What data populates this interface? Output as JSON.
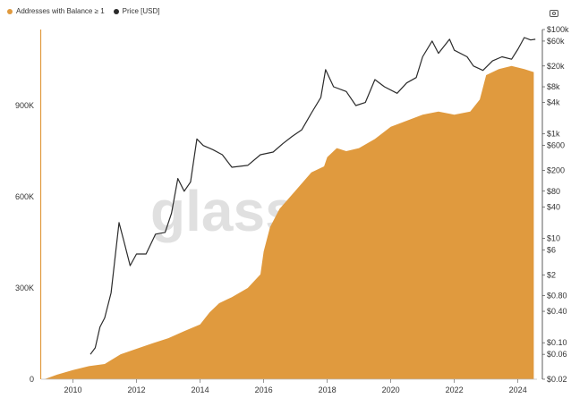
{
  "legend": {
    "addresses_label": "Addresses with Balance ≥ 1",
    "price_label": "Price [USD]",
    "addresses_color": "#e09a3e",
    "price_color": "#2b2b2b"
  },
  "toolbar": {
    "camera_icon": "camera-icon"
  },
  "watermark": "glassnode",
  "chart_data": {
    "type": "area",
    "x_ticks": [
      "2010",
      "2012",
      "2014",
      "2016",
      "2018",
      "2020",
      "2022",
      "2024"
    ],
    "left_axis": {
      "ticks": [
        "0",
        "300K",
        "600K",
        "900K"
      ],
      "tick_values": [
        0,
        300000,
        600000,
        900000
      ],
      "ylim": [
        0,
        1150000
      ]
    },
    "right_axis": {
      "scale": "log",
      "ticks": [
        "$0.02",
        "$0.06",
        "$0.10",
        "$0.40",
        "$0.80",
        "$2",
        "$6",
        "$10",
        "$40",
        "$80",
        "$200",
        "$600",
        "$1k",
        "$4k",
        "$8k",
        "$20k",
        "$60k",
        "$100k"
      ],
      "tick_values": [
        0.02,
        0.06,
        0.1,
        0.4,
        0.8,
        2,
        6,
        10,
        40,
        80,
        200,
        600,
        1000,
        4000,
        8000,
        20000,
        60000,
        100000
      ],
      "ylim": [
        0.02,
        100000
      ]
    },
    "xlim": [
      2009.0,
      2024.6
    ],
    "series": [
      {
        "name": "Addresses with Balance ≥ 1",
        "axis": "left",
        "points": [
          [
            2009.1,
            0
          ],
          [
            2009.5,
            15000
          ],
          [
            2010.0,
            30000
          ],
          [
            2010.5,
            43000
          ],
          [
            2011.0,
            50000
          ],
          [
            2011.5,
            82000
          ],
          [
            2012.0,
            100000
          ],
          [
            2012.5,
            118000
          ],
          [
            2013.0,
            135000
          ],
          [
            2013.5,
            158000
          ],
          [
            2014.0,
            180000
          ],
          [
            2014.3,
            220000
          ],
          [
            2014.6,
            250000
          ],
          [
            2015.0,
            270000
          ],
          [
            2015.5,
            300000
          ],
          [
            2015.9,
            345000
          ],
          [
            2016.0,
            420000
          ],
          [
            2016.2,
            500000
          ],
          [
            2016.5,
            560000
          ],
          [
            2017.0,
            620000
          ],
          [
            2017.5,
            680000
          ],
          [
            2017.9,
            700000
          ],
          [
            2018.0,
            730000
          ],
          [
            2018.3,
            760000
          ],
          [
            2018.6,
            750000
          ],
          [
            2019.0,
            760000
          ],
          [
            2019.5,
            790000
          ],
          [
            2020.0,
            830000
          ],
          [
            2020.5,
            850000
          ],
          [
            2021.0,
            870000
          ],
          [
            2021.5,
            880000
          ],
          [
            2022.0,
            870000
          ],
          [
            2022.5,
            880000
          ],
          [
            2022.8,
            920000
          ],
          [
            2023.0,
            1000000
          ],
          [
            2023.4,
            1020000
          ],
          [
            2023.8,
            1030000
          ],
          [
            2024.2,
            1020000
          ],
          [
            2024.5,
            1010000
          ]
        ]
      },
      {
        "name": "Price [USD]",
        "axis": "right",
        "points": [
          [
            2010.55,
            0.06
          ],
          [
            2010.7,
            0.08
          ],
          [
            2010.85,
            0.2
          ],
          [
            2011.0,
            0.3
          ],
          [
            2011.2,
            0.9
          ],
          [
            2011.45,
            20
          ],
          [
            2011.6,
            9
          ],
          [
            2011.8,
            3
          ],
          [
            2012.0,
            5
          ],
          [
            2012.3,
            5
          ],
          [
            2012.6,
            12
          ],
          [
            2012.9,
            13
          ],
          [
            2013.1,
            30
          ],
          [
            2013.3,
            140
          ],
          [
            2013.5,
            80
          ],
          [
            2013.7,
            120
          ],
          [
            2013.9,
            800
          ],
          [
            2014.1,
            600
          ],
          [
            2014.4,
            500
          ],
          [
            2014.7,
            400
          ],
          [
            2015.0,
            230
          ],
          [
            2015.5,
            250
          ],
          [
            2015.9,
            400
          ],
          [
            2016.3,
            450
          ],
          [
            2016.6,
            650
          ],
          [
            2016.9,
            900
          ],
          [
            2017.2,
            1200
          ],
          [
            2017.5,
            2500
          ],
          [
            2017.8,
            5000
          ],
          [
            2017.95,
            17000
          ],
          [
            2018.2,
            8000
          ],
          [
            2018.6,
            6500
          ],
          [
            2018.9,
            3500
          ],
          [
            2019.2,
            4000
          ],
          [
            2019.5,
            11000
          ],
          [
            2019.8,
            8000
          ],
          [
            2020.2,
            6000
          ],
          [
            2020.5,
            9500
          ],
          [
            2020.8,
            12000
          ],
          [
            2021.0,
            30000
          ],
          [
            2021.3,
            60000
          ],
          [
            2021.5,
            35000
          ],
          [
            2021.85,
            65000
          ],
          [
            2022.0,
            40000
          ],
          [
            2022.4,
            30000
          ],
          [
            2022.6,
            20000
          ],
          [
            2022.9,
            16500
          ],
          [
            2023.2,
            25000
          ],
          [
            2023.5,
            30000
          ],
          [
            2023.8,
            27000
          ],
          [
            2024.0,
            42000
          ],
          [
            2024.2,
            70000
          ],
          [
            2024.4,
            63000
          ],
          [
            2024.55,
            65000
          ]
        ]
      }
    ]
  }
}
